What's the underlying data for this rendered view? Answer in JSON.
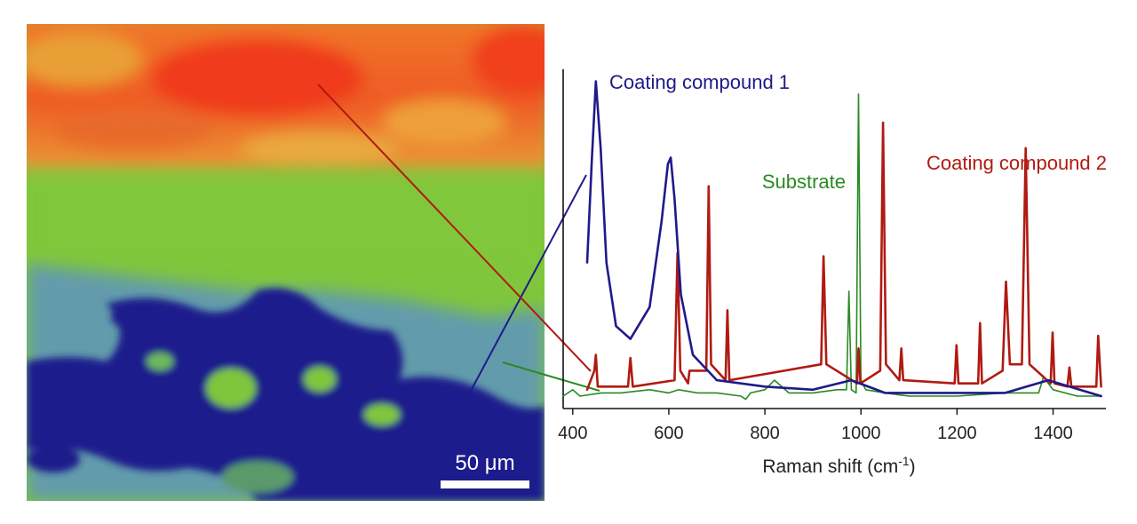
{
  "image": {
    "scale_bar_label": "50 μm",
    "phase_colors": {
      "coating_compound_2": "#e8381e",
      "substrate": "#7fc43a",
      "coating_compound_1": "#1c1a8c"
    }
  },
  "chart_data": {
    "type": "line",
    "xlabel": "Raman shift (cm",
    "xlabel_sup": "-1",
    "xlabel_end": ")",
    "xlim": [
      380,
      1510
    ],
    "x_ticks": [
      400,
      600,
      800,
      1000,
      1200,
      1400
    ],
    "y_axis": "intensity (unlabeled)",
    "grid": false,
    "series": [
      {
        "name": "Coating compound 1",
        "color": "#1f1a8a",
        "x": [
          430,
          440,
          448,
          458,
          470,
          490,
          520,
          560,
          585,
          598,
          604,
          612,
          625,
          650,
          700,
          800,
          900,
          980,
          1050,
          1300,
          1390,
          1500
        ],
        "y": [
          0.42,
          0.75,
          0.99,
          0.78,
          0.42,
          0.22,
          0.18,
          0.28,
          0.55,
          0.73,
          0.75,
          0.62,
          0.32,
          0.13,
          0.05,
          0.03,
          0.02,
          0.05,
          0.01,
          0.01,
          0.05,
          0.0
        ]
      },
      {
        "name": "Coating compound 2",
        "color": "#b01a12",
        "x": [
          430,
          445,
          448,
          452,
          515,
          520,
          525,
          612,
          618,
          624,
          640,
          643,
          678,
          683,
          688,
          718,
          722,
          726,
          917,
          922,
          928,
          992,
          995,
          999,
          1040,
          1046,
          1052,
          1080,
          1084,
          1088,
          1195,
          1199,
          1203,
          1244,
          1248,
          1252,
          1295,
          1302,
          1310,
          1335,
          1343,
          1351,
          1395,
          1399,
          1403,
          1430,
          1434,
          1438,
          1490,
          1494,
          1500
        ],
        "y": [
          0.02,
          0.08,
          0.13,
          0.03,
          0.03,
          0.12,
          0.03,
          0.05,
          0.45,
          0.08,
          0.04,
          0.08,
          0.08,
          0.66,
          0.1,
          0.05,
          0.27,
          0.05,
          0.1,
          0.44,
          0.1,
          0.04,
          0.15,
          0.04,
          0.08,
          0.86,
          0.1,
          0.05,
          0.15,
          0.05,
          0.04,
          0.16,
          0.04,
          0.04,
          0.23,
          0.04,
          0.08,
          0.36,
          0.1,
          0.1,
          0.78,
          0.1,
          0.04,
          0.2,
          0.04,
          0.03,
          0.09,
          0.03,
          0.03,
          0.19,
          0.03
        ]
      },
      {
        "name": "Substrate",
        "color": "#2a8a22",
        "x": [
          380,
          400,
          415,
          460,
          500,
          560,
          600,
          620,
          660,
          700,
          750,
          760,
          770,
          800,
          820,
          850,
          900,
          950,
          970,
          975,
          980,
          990,
          995,
          1000,
          1010,
          1050,
          1100,
          1150,
          1200,
          1300,
          1370,
          1380,
          1400,
          1450,
          1500
        ],
        "y": [
          0.0,
          0.02,
          0.0,
          0.01,
          0.01,
          0.02,
          0.01,
          0.02,
          0.01,
          0.01,
          0.0,
          -0.01,
          0.01,
          0.02,
          0.05,
          0.01,
          0.01,
          0.02,
          0.02,
          0.33,
          0.02,
          0.01,
          0.95,
          0.05,
          0.02,
          0.01,
          0.0,
          0.0,
          0.0,
          0.01,
          0.01,
          0.06,
          0.02,
          0.0,
          0.0
        ]
      }
    ]
  }
}
